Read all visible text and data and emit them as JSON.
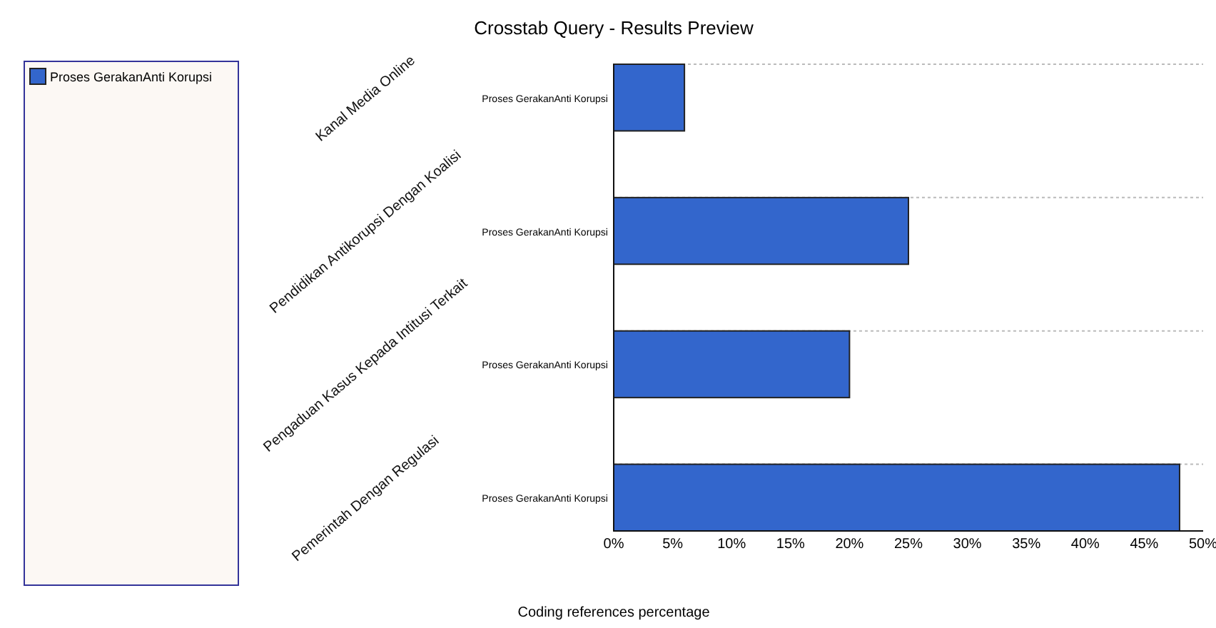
{
  "chart_data": {
    "type": "bar",
    "orientation": "horizontal",
    "title": "Crosstab Query - Results Preview",
    "xlabel": "Coding references percentage",
    "categories": [
      "Proses GerakanAnti Korupsi",
      "Proses GerakanAnti Korupsi",
      "Proses GerakanAnti Korupsi",
      "Proses GerakanAnti Korupsi"
    ],
    "annotations": [
      "Kanal Media Online",
      "Pendidikan Antikorupsi Dengan Koalisi",
      "Pengaduan Kasus Kepada Intitusi Terkait",
      "Pemerintah Dengan Regulasi"
    ],
    "series": [
      {
        "name": "Proses GerakanAnti Korupsi",
        "color": "#3366cc",
        "values": [
          6,
          25,
          20,
          48
        ]
      }
    ],
    "xlim": [
      0,
      50
    ],
    "xticks": [
      {
        "value": 0,
        "label": "0%"
      },
      {
        "value": 5,
        "label": "5%"
      },
      {
        "value": 10,
        "label": "10%"
      },
      {
        "value": 15,
        "label": "15%"
      },
      {
        "value": 20,
        "label": "20%"
      },
      {
        "value": 25,
        "label": "25%"
      },
      {
        "value": 30,
        "label": "30%"
      },
      {
        "value": 35,
        "label": "35%"
      },
      {
        "value": 40,
        "label": "40%"
      },
      {
        "value": 45,
        "label": "45%"
      },
      {
        "value": 50,
        "label": "50%"
      }
    ],
    "grid": "y",
    "legend": "left"
  }
}
